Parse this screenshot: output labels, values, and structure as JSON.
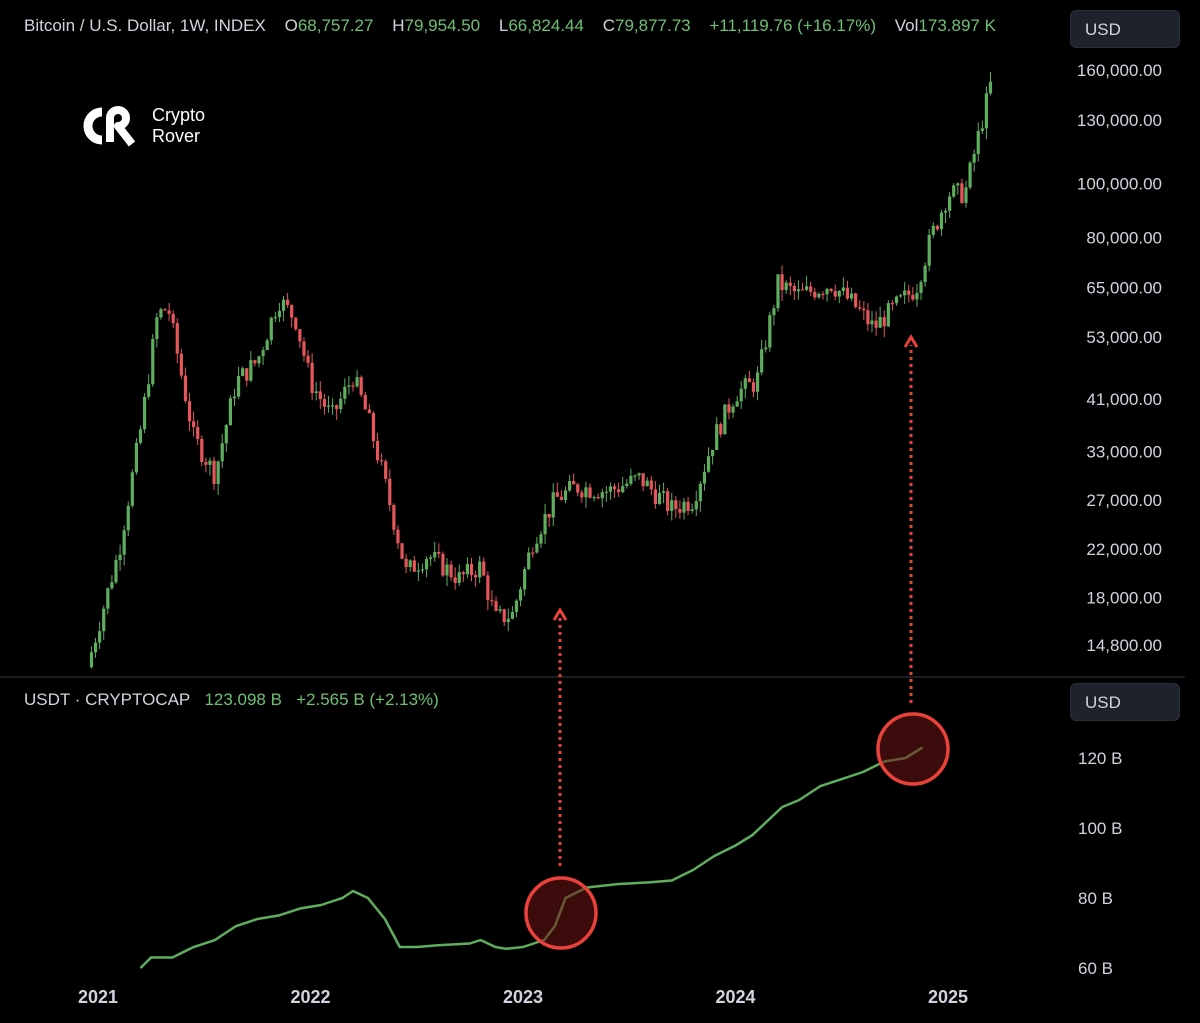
{
  "header": {
    "title": "Bitcoin / U.S. Dollar, 1W, INDEX",
    "open_label": "O",
    "open": "68,757.27",
    "high_label": "H",
    "high": "79,954.50",
    "low_label": "L",
    "low": "66,824.44",
    "close_label": "C",
    "close": "79,877.73",
    "change": "+11,119.76 (+16.17%)",
    "vol_label": "Vol",
    "vol": "173.897 K"
  },
  "currency_button": "USD",
  "sub_header": {
    "title": "USDT · CRYPTOCAP",
    "value": "123.098 B",
    "change": "+2.565 B (+2.13%)"
  },
  "sub_currency_button": "USD",
  "logo": {
    "line1": "Crypto",
    "line2": "Rover"
  },
  "colors": {
    "up": "#5fae5f",
    "down": "#e5575a",
    "accent_red": "#e8423a",
    "background": "#000000"
  },
  "chart_data": [
    {
      "type": "candlestick",
      "title": "Bitcoin / U.S. Dollar, 1W, INDEX",
      "scale": "log",
      "y_ticks": [
        "160,000.00",
        "130,000.00",
        "100,000.00",
        "80,000.00",
        "65,000.00",
        "53,000.00",
        "41,000.00",
        "33,000.00",
        "27,000.00",
        "22,000.00",
        "18,000.00",
        "14,800.00"
      ],
      "y_tick_values": [
        160000,
        130000,
        100000,
        80000,
        65000,
        53000,
        41000,
        33000,
        27000,
        22000,
        18000,
        14800
      ],
      "x_ticks": [
        "2021",
        "2022",
        "2023",
        "2024",
        "2025"
      ],
      "x": [
        2020.95,
        2021.1,
        2021.2,
        2021.28,
        2021.33,
        2021.45,
        2021.55,
        2021.65,
        2021.75,
        2021.85,
        2021.93,
        2022.0,
        2022.1,
        2022.2,
        2022.27,
        2022.35,
        2022.45,
        2022.55,
        2022.7,
        2022.8,
        2022.87,
        2022.95,
        2023.05,
        2023.15,
        2023.25,
        2023.4,
        2023.55,
        2023.7,
        2023.8,
        2023.9,
        2024.0,
        2024.1,
        2024.2,
        2024.3,
        2024.45,
        2024.55,
        2024.65,
        2024.75,
        2024.85,
        2024.92,
        2025.0,
        2025.08,
        2025.15,
        2025.2
      ],
      "close": [
        13500,
        22000,
        36000,
        58000,
        60000,
        35000,
        30000,
        44000,
        48000,
        62000,
        57000,
        44000,
        38000,
        45000,
        38000,
        29000,
        20000,
        21500,
        19500,
        20500,
        16500,
        16800,
        23000,
        27000,
        28500,
        28000,
        29500,
        26000,
        27000,
        35000,
        42000,
        44000,
        66000,
        63000,
        66000,
        61000,
        55000,
        60000,
        65000,
        80000,
        96000,
        96000,
        125000,
        150000
      ],
      "annotation_arrows": [
        "2023",
        "2024 Q4"
      ]
    },
    {
      "type": "line",
      "title": "USDT · CRYPTOCAP",
      "series": [
        {
          "name": "USDT",
          "x": [
            2021.2,
            2021.25,
            2021.35,
            2021.45,
            2021.55,
            2021.65,
            2021.75,
            2021.85,
            2021.95,
            2022.05,
            2022.1,
            2022.15,
            2022.2,
            2022.27,
            2022.35,
            2022.42,
            2022.5,
            2022.6,
            2022.75,
            2022.8,
            2022.87,
            2022.92,
            2023.0,
            2023.05,
            2023.1,
            2023.15,
            2023.2,
            2023.3,
            2023.45,
            2023.6,
            2023.7,
            2023.8,
            2023.9,
            2024.0,
            2024.08,
            2024.15,
            2024.22,
            2024.3,
            2024.4,
            2024.5,
            2024.6,
            2024.7,
            2024.8,
            2024.88
          ],
          "values": [
            60,
            63,
            63,
            66,
            68,
            72,
            74,
            75,
            77,
            78,
            79,
            80,
            82,
            80,
            74,
            66,
            66,
            66.5,
            67,
            68,
            66,
            65.5,
            66,
            67,
            68,
            72,
            80,
            83,
            84,
            84.5,
            85,
            88,
            92,
            95,
            98,
            102,
            106,
            108,
            112,
            114,
            116,
            119,
            120,
            123
          ]
        }
      ],
      "y_ticks": [
        "120 B",
        "100 B",
        "80 B",
        "60 B"
      ],
      "y_tick_values": [
        120,
        100,
        80,
        60
      ],
      "highlight_circles": [
        "2023",
        "2024 Q4"
      ]
    }
  ]
}
